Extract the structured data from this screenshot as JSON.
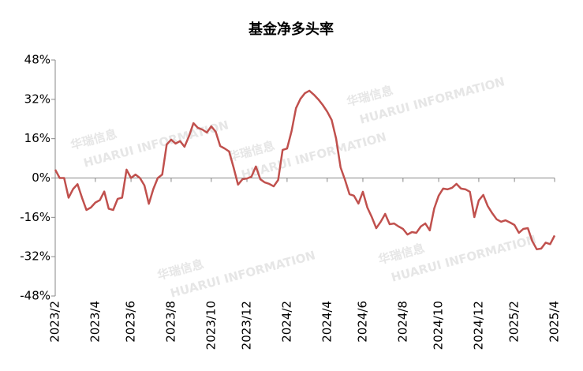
{
  "chart_data": {
    "type": "line",
    "title": "基金净多头率",
    "watermark": {
      "text": "华瑞信息",
      "subtext": "HUARUI INFORMATION"
    },
    "categories": [
      "2023/2",
      null,
      null,
      null,
      null,
      null,
      null,
      null,
      null,
      "2023/4",
      null,
      null,
      null,
      null,
      null,
      null,
      null,
      "2023/6",
      null,
      null,
      null,
      null,
      null,
      null,
      null,
      null,
      "2023/8",
      null,
      null,
      null,
      null,
      null,
      null,
      null,
      null,
      "2023/10",
      null,
      null,
      null,
      null,
      null,
      null,
      null,
      "2023/12",
      null,
      null,
      null,
      null,
      null,
      null,
      null,
      null,
      "2024/2",
      null,
      null,
      null,
      null,
      null,
      null,
      null,
      null,
      "2024/4",
      null,
      null,
      null,
      null,
      null,
      null,
      null,
      "2024/6",
      null,
      null,
      null,
      null,
      null,
      null,
      null,
      null,
      "2024/8",
      null,
      null,
      null,
      null,
      null,
      null,
      null,
      "2024/10",
      null,
      null,
      null,
      null,
      null,
      null,
      null,
      null,
      "2024/12",
      null,
      null,
      null,
      null,
      null,
      null,
      null,
      "2025/2",
      null,
      null,
      null,
      null,
      null,
      null,
      null,
      null,
      "2025/4"
    ],
    "series": [
      {
        "name": "基金净多头率",
        "color": "#c0504d",
        "values": [
          3.4,
          0,
          0,
          -8,
          -4.5,
          -2.5,
          -8,
          -13,
          -12,
          -10,
          -9,
          -5.5,
          -12.5,
          -13,
          -8.5,
          -8,
          3.4,
          0,
          1.4,
          0,
          -3,
          -10.5,
          -4.5,
          0,
          1.4,
          13.6,
          15.6,
          14,
          15,
          12.7,
          17,
          22.3,
          20.4,
          19.7,
          18.5,
          21,
          18.8,
          13,
          12,
          10.8,
          4.3,
          -2.7,
          -0.5,
          -0.2,
          0.5,
          4.7,
          -0.5,
          -1.8,
          -2.4,
          -3.4,
          -0.8,
          11.4,
          12,
          19,
          28.4,
          32.2,
          34.5,
          35.5,
          33.9,
          32,
          29.7,
          27,
          23.6,
          16,
          4.3,
          -0.8,
          -6.6,
          -7.2,
          -10.4,
          -5.6,
          -12,
          -15.9,
          -20.4,
          -17.8,
          -14.6,
          -18.8,
          -18.5,
          -19.7,
          -20.7,
          -23,
          -22,
          -22.3,
          -19.7,
          -18.5,
          -21.3,
          -12.4,
          -7.2,
          -4.3,
          -4.6,
          -4,
          -2.4,
          -4.3,
          -4.6,
          -5.6,
          -15.9,
          -9.1,
          -6.9,
          -11.4,
          -14.3,
          -16.8,
          -17.8,
          -17.2,
          -18.1,
          -19.1,
          -22.3,
          -20.7,
          -20.4,
          -25.7,
          -29,
          -28.7,
          -26.3,
          -26.9,
          -23.4
        ]
      }
    ],
    "ylim": [
      -48,
      48
    ],
    "yticks": [
      {
        "value": 48,
        "label": "48%"
      },
      {
        "value": 32,
        "label": "32%"
      },
      {
        "value": 16,
        "label": "16%"
      },
      {
        "value": 0,
        "label": "0%"
      },
      {
        "value": -16,
        "label": "-16%"
      },
      {
        "value": -32,
        "label": "-32%"
      },
      {
        "value": -48,
        "label": "-48%"
      }
    ]
  }
}
